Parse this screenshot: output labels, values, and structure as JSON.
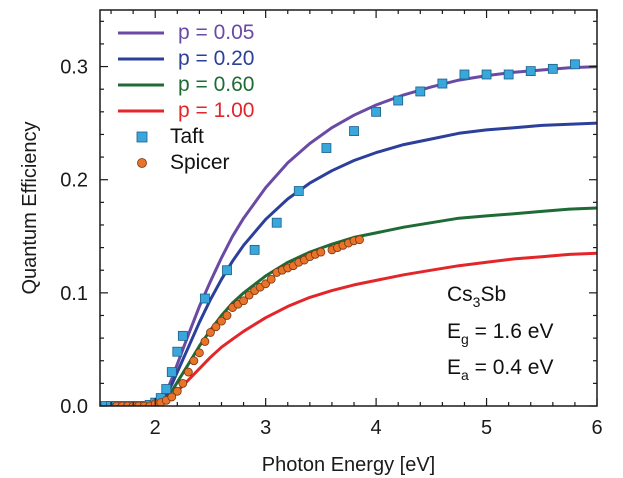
{
  "chart_data": {
    "type": "line",
    "xlabel": "Photon Energy [eV]",
    "ylabel": "Quantum Efficiency",
    "xlim": [
      1.5,
      6.0
    ],
    "ylim": [
      0.0,
      0.35
    ],
    "x_ticks": [
      2,
      3,
      4,
      5,
      6
    ],
    "y_ticks": [
      0.0,
      0.1,
      0.2,
      0.3
    ],
    "x_tick_labels": [
      "2",
      "3",
      "4",
      "5",
      "6"
    ],
    "y_tick_labels": [
      "0.0",
      "0.1",
      "0.2",
      "0.3"
    ],
    "legend_position": "top-left",
    "grid": false,
    "series": [
      {
        "name": "p = 0.05",
        "kind": "line",
        "color": "#6a4aa5",
        "x": [
          1.55,
          2.0,
          2.05,
          2.1,
          2.15,
          2.2,
          2.3,
          2.4,
          2.5,
          2.6,
          2.7,
          2.8,
          3.0,
          3.2,
          3.4,
          3.6,
          3.8,
          4.0,
          4.25,
          4.5,
          4.75,
          5.0,
          5.25,
          5.5,
          5.75,
          6.0
        ],
        "y": [
          0.0,
          0.0,
          0.004,
          0.012,
          0.024,
          0.037,
          0.063,
          0.088,
          0.11,
          0.131,
          0.15,
          0.166,
          0.193,
          0.215,
          0.232,
          0.246,
          0.257,
          0.266,
          0.275,
          0.282,
          0.288,
          0.292,
          0.295,
          0.297,
          0.299,
          0.3
        ]
      },
      {
        "name": "p = 0.20",
        "kind": "line",
        "color": "#2b3f9b",
        "x": [
          1.55,
          2.0,
          2.05,
          2.1,
          2.15,
          2.2,
          2.3,
          2.4,
          2.5,
          2.6,
          2.7,
          2.8,
          3.0,
          3.2,
          3.4,
          3.6,
          3.8,
          4.0,
          4.25,
          4.5,
          4.75,
          5.0,
          5.25,
          5.5,
          5.75,
          6.0
        ],
        "y": [
          0.0,
          0.0,
          0.003,
          0.009,
          0.019,
          0.03,
          0.052,
          0.074,
          0.094,
          0.112,
          0.128,
          0.142,
          0.165,
          0.183,
          0.197,
          0.208,
          0.217,
          0.224,
          0.231,
          0.236,
          0.241,
          0.244,
          0.246,
          0.248,
          0.249,
          0.25
        ]
      },
      {
        "name": "p = 0.60",
        "kind": "line",
        "color": "#1f6b35",
        "x": [
          1.55,
          2.0,
          2.05,
          2.1,
          2.15,
          2.2,
          2.3,
          2.4,
          2.5,
          2.6,
          2.7,
          2.8,
          3.0,
          3.2,
          3.4,
          3.6,
          3.8,
          4.0,
          4.25,
          4.5,
          4.75,
          5.0,
          5.25,
          5.5,
          5.75,
          6.0
        ],
        "y": [
          0.0,
          0.0,
          0.002,
          0.006,
          0.013,
          0.021,
          0.037,
          0.053,
          0.067,
          0.08,
          0.091,
          0.1,
          0.115,
          0.127,
          0.136,
          0.143,
          0.149,
          0.153,
          0.158,
          0.162,
          0.166,
          0.168,
          0.17,
          0.172,
          0.174,
          0.175
        ]
      },
      {
        "name": "p = 1.00",
        "kind": "line",
        "color": "#e2262a",
        "x": [
          1.55,
          2.0,
          2.05,
          2.1,
          2.15,
          2.2,
          2.3,
          2.4,
          2.5,
          2.6,
          2.7,
          2.8,
          3.0,
          3.2,
          3.4,
          3.6,
          3.8,
          4.0,
          4.25,
          4.5,
          4.75,
          5.0,
          5.25,
          5.5,
          5.75,
          6.0
        ],
        "y": [
          0.0,
          0.0,
          0.001,
          0.004,
          0.008,
          0.013,
          0.023,
          0.033,
          0.043,
          0.052,
          0.059,
          0.066,
          0.078,
          0.088,
          0.096,
          0.102,
          0.107,
          0.111,
          0.116,
          0.12,
          0.124,
          0.127,
          0.13,
          0.132,
          0.134,
          0.135
        ]
      },
      {
        "name": "Taft",
        "kind": "scatter",
        "marker": "square",
        "color": "#39a6dc",
        "x": [
          1.55,
          1.6,
          1.65,
          1.7,
          1.75,
          1.8,
          1.85,
          1.9,
          1.95,
          2.0,
          2.05,
          2.1,
          2.15,
          2.2,
          2.25,
          2.45,
          2.65,
          2.9,
          3.1,
          3.3,
          3.55,
          3.8,
          4.0,
          4.2,
          4.4,
          4.6,
          4.8,
          5.0,
          5.2,
          5.4,
          5.6,
          5.8
        ],
        "y": [
          0.0,
          0.0,
          0.0,
          0.0,
          0.0,
          0.0,
          0.0,
          0.0,
          0.001,
          0.003,
          0.007,
          0.015,
          0.03,
          0.048,
          0.062,
          0.095,
          0.12,
          0.138,
          0.162,
          0.19,
          0.228,
          0.243,
          0.26,
          0.27,
          0.278,
          0.285,
          0.293,
          0.293,
          0.293,
          0.296,
          0.298,
          0.302
        ]
      },
      {
        "name": "Spicer",
        "kind": "scatter",
        "marker": "circle",
        "color": "#e8732a",
        "x": [
          1.65,
          1.7,
          1.75,
          1.8,
          1.85,
          1.9,
          1.95,
          2.0,
          2.05,
          2.1,
          2.15,
          2.2,
          2.25,
          2.3,
          2.35,
          2.4,
          2.45,
          2.5,
          2.55,
          2.6,
          2.65,
          2.7,
          2.75,
          2.8,
          2.85,
          2.9,
          2.95,
          3.0,
          3.05,
          3.1,
          3.15,
          3.2,
          3.25,
          3.3,
          3.35,
          3.4,
          3.45,
          3.5,
          3.6,
          3.65,
          3.7,
          3.75,
          3.8,
          3.85
        ],
        "y": [
          0.0,
          0.0,
          0.0,
          0.0,
          0.0,
          0.0,
          0.0,
          0.002,
          0.003,
          0.005,
          0.008,
          0.013,
          0.02,
          0.03,
          0.04,
          0.047,
          0.057,
          0.065,
          0.07,
          0.075,
          0.08,
          0.087,
          0.09,
          0.093,
          0.098,
          0.102,
          0.105,
          0.108,
          0.112,
          0.118,
          0.12,
          0.122,
          0.124,
          0.127,
          0.129,
          0.132,
          0.134,
          0.136,
          0.138,
          0.14,
          0.142,
          0.144,
          0.146,
          0.147
        ]
      }
    ],
    "annotations": {
      "material": {
        "main": "Cs",
        "sub1": "3",
        "tail": "Sb"
      },
      "eg": {
        "main": "E",
        "sub": "g",
        "tail": " = 1.6 eV"
      },
      "ea": {
        "main": "E",
        "sub": "a",
        "tail": " = 0.4 eV"
      }
    }
  }
}
